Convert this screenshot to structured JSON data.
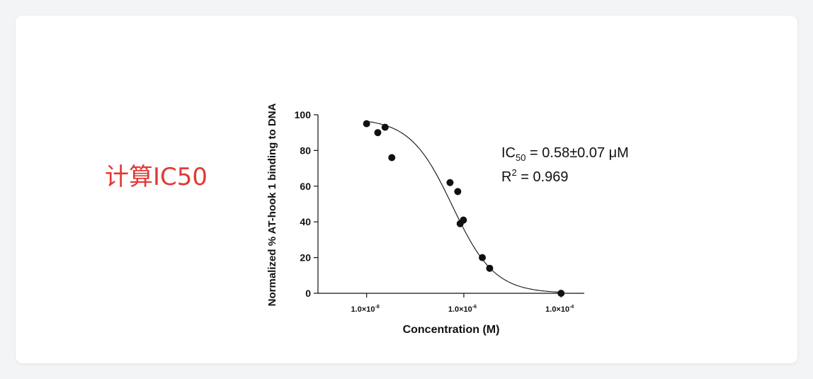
{
  "panel": {
    "label": "计算IC50"
  },
  "chart_data": {
    "type": "scatter",
    "title": "",
    "xlabel": "Concentration (M)",
    "ylabel": "Normalized % AT-hook 1 binding to DNA",
    "x_scale": "log",
    "xlim": [
      1e-09,
      0.0003
    ],
    "ylim": [
      0,
      100
    ],
    "x_ticks": [
      {
        "value": 1e-08,
        "base": "1.0×10",
        "exp": "-8"
      },
      {
        "value": 1e-06,
        "base": "1.0×10",
        "exp": "-6"
      },
      {
        "value": 0.0001,
        "base": "1.0×10",
        "exp": "-4"
      }
    ],
    "y_ticks": [
      0,
      20,
      40,
      60,
      80,
      100
    ],
    "points": [
      {
        "x": 1e-08,
        "y": 95
      },
      {
        "x": 1.7e-08,
        "y": 90
      },
      {
        "x": 2.4e-08,
        "y": 93
      },
      {
        "x": 3.3e-08,
        "y": 76
      },
      {
        "x": 5.2e-07,
        "y": 62
      },
      {
        "x": 7.5e-07,
        "y": 57
      },
      {
        "x": 8.4e-07,
        "y": 39
      },
      {
        "x": 9.8e-07,
        "y": 41
      },
      {
        "x": 2.4e-06,
        "y": 20
      },
      {
        "x": 3.4e-06,
        "y": 14
      },
      {
        "x": 0.0001,
        "y": 0
      }
    ],
    "fit": {
      "model": "sigmoidal dose-response",
      "top": 98,
      "bottom": 0,
      "ic50": 5.8e-07,
      "hill": 1.0
    },
    "annotations": {
      "ic50": {
        "prefix": "IC",
        "sub": "50",
        "value": " = 0.58±0.07 μM"
      },
      "r2": {
        "prefix": "R",
        "sup": "2",
        "value": " = 0.969"
      }
    }
  }
}
